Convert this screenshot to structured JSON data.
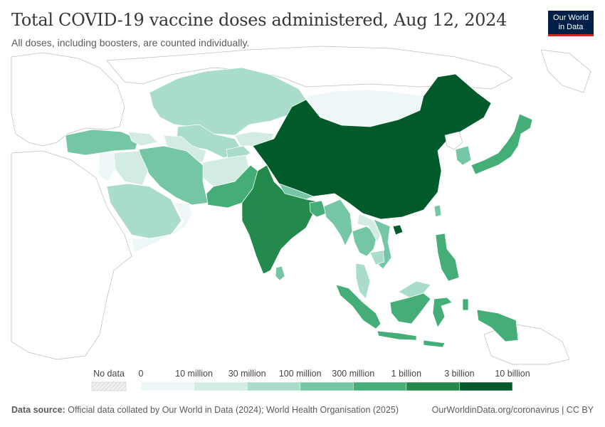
{
  "header": {
    "title": "Total COVID-19 vaccine doses administered, Aug 12, 2024",
    "subtitle": "All doses, including boosters, are counted individually."
  },
  "logo": {
    "line1": "Our World",
    "line2": "in Data"
  },
  "legend": {
    "no_data_label": "No data",
    "bins": [
      {
        "label": "0",
        "color": "#eef7f8"
      },
      {
        "label": "10 million",
        "color": "#d2ece4"
      },
      {
        "label": "30 million",
        "color": "#a9dccb"
      },
      {
        "label": "100 million",
        "color": "#74c6a4"
      },
      {
        "label": "300 million",
        "color": "#44ad78"
      },
      {
        "label": "1 billion",
        "color": "#248a4c"
      },
      {
        "label": "3 billion",
        "color": "#005a2a"
      },
      {
        "label": "10 billion",
        "color": ""
      }
    ]
  },
  "map_colors": {
    "ocean": "#ffffff",
    "no_data_land": "#ffffff",
    "border": "#bdbdbd"
  },
  "footer": {
    "source_label": "Data source:",
    "source_text": "Official data collated by Our World in Data (2024); World Health Organisation (2025)",
    "url_text": "OurWorldinData.org/coronavirus | CC BY"
  }
}
